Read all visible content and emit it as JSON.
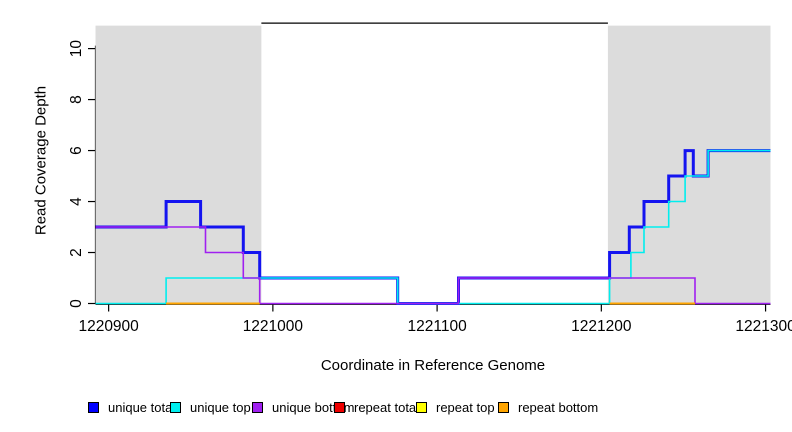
{
  "chart_data": {
    "type": "line",
    "subtype": "step-coverage-plot",
    "title": "",
    "xlabel": "Coordinate in Reference Genome",
    "ylabel": "Read Coverage Depth",
    "x_ticks": [
      1220900,
      1221000,
      1221100,
      1221200,
      1221300
    ],
    "x_range": [
      1220892,
      1221303
    ],
    "y_ticks": [
      0,
      2,
      4,
      6,
      8,
      10
    ],
    "y_range": [
      0,
      11.2
    ],
    "grid": false,
    "background_regions": {
      "color": "#DCDCDC",
      "regions": [
        {
          "from": 1220892,
          "to": 1220993
        },
        {
          "from": 1221204,
          "to": 1221303
        }
      ]
    },
    "annotation_segment": {
      "y": 11,
      "from": 1220993,
      "to": 1221204,
      "color": "#000000"
    },
    "axis_color": "#000000",
    "series": [
      {
        "name": "unique total",
        "color": "#1414F0",
        "lwd": 3,
        "segments": [
          {
            "steps": [
              [
                1220892,
                3
              ],
              [
                1220935,
                4
              ],
              [
                1220956,
                3
              ],
              [
                1220982,
                2
              ],
              [
                1220992,
                1
              ],
              [
                1221076,
                0
              ],
              [
                1221113,
                1
              ],
              [
                1221205,
                2
              ],
              [
                1221217,
                3
              ],
              [
                1221226,
                4
              ],
              [
                1221241,
                5
              ],
              [
                1221251,
                6
              ],
              [
                1221256,
                5
              ],
              [
                1221265,
                6
              ]
            ],
            "end": 1221303
          }
        ]
      },
      {
        "name": "unique top",
        "color": "#00EEEE",
        "lwd": 1.6,
        "segments": [
          {
            "steps": [
              [
                1220892,
                0
              ],
              [
                1220935,
                1
              ],
              [
                1221076,
                0
              ],
              [
                1221205,
                1
              ],
              [
                1221218,
                2
              ],
              [
                1221226,
                3
              ],
              [
                1221241,
                4
              ],
              [
                1221251,
                5
              ],
              [
                1221265,
                6
              ]
            ],
            "end": 1221303
          }
        ]
      },
      {
        "name": "unique bottom",
        "color": "#A020F0",
        "lwd": 1.6,
        "segments": [
          {
            "steps": [
              [
                1220892,
                3
              ],
              [
                1220959,
                2
              ],
              [
                1220982,
                1
              ],
              [
                1220992,
                0
              ],
              [
                1221113,
                1
              ],
              [
                1221257,
                0
              ]
            ],
            "end": 1221303
          }
        ]
      },
      {
        "name": "repeat total",
        "color": "#EE0000",
        "lwd": 1.6,
        "segments": []
      },
      {
        "name": "repeat top",
        "color": "#FFFF00",
        "lwd": 1.6,
        "segments": []
      },
      {
        "name": "repeat bottom",
        "color": "#FFA500",
        "lwd": 2,
        "segments": [
          {
            "steps": [
              [
                1220935,
                0
              ]
            ],
            "end": 1220992
          },
          {
            "steps": [
              [
                1221205,
                0
              ]
            ],
            "end": 1221257
          }
        ]
      }
    ],
    "legend": {
      "position": "bottom",
      "items": [
        {
          "label": "unique total",
          "color": "#0000FF"
        },
        {
          "label": "unique top",
          "color": "#00EEEE"
        },
        {
          "label": "unique bottom",
          "color": "#A020F0"
        },
        {
          "label": "repeat total",
          "color": "#EE0000"
        },
        {
          "label": "repeat top",
          "color": "#FFFF00"
        },
        {
          "label": "repeat bottom",
          "color": "#FFA500"
        }
      ]
    }
  }
}
